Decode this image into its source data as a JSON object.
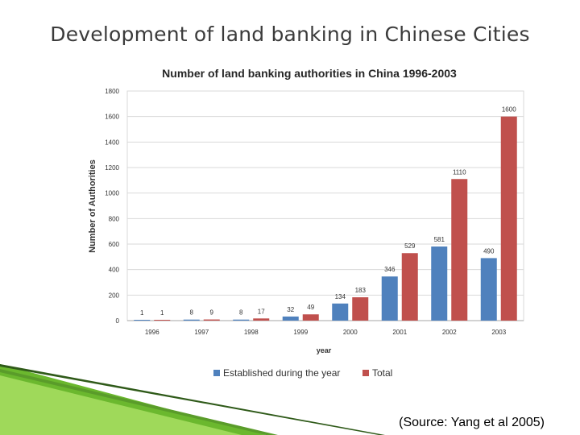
{
  "slide": {
    "title": "Development of land banking in Chinese Cities",
    "source": "(Source: Yang et al 2005)"
  },
  "colors": {
    "established": "#4f81bd",
    "total": "#c0504d",
    "accent_green": "#7ec832"
  },
  "chart_data": {
    "type": "bar",
    "title": "Number of land  banking authorities in China 1996-2003",
    "xlabel": "year",
    "ylabel": "Number of Authorities",
    "categories": [
      "1996",
      "1997",
      "1998",
      "1999",
      "2000",
      "2001",
      "2002",
      "2003"
    ],
    "ylim": [
      0,
      1800
    ],
    "yticks": [
      0,
      200,
      400,
      600,
      800,
      1000,
      1200,
      1400,
      1600,
      1800
    ],
    "grid": true,
    "legend": "bottom",
    "series": [
      {
        "name": "Established during the year",
        "color": "#4f81bd",
        "values": [
          1,
          8,
          8,
          32,
          134,
          346,
          581,
          490
        ]
      },
      {
        "name": "Total",
        "color": "#c0504d",
        "values": [
          1,
          9,
          17,
          49,
          183,
          529,
          1110,
          1600
        ]
      }
    ]
  }
}
